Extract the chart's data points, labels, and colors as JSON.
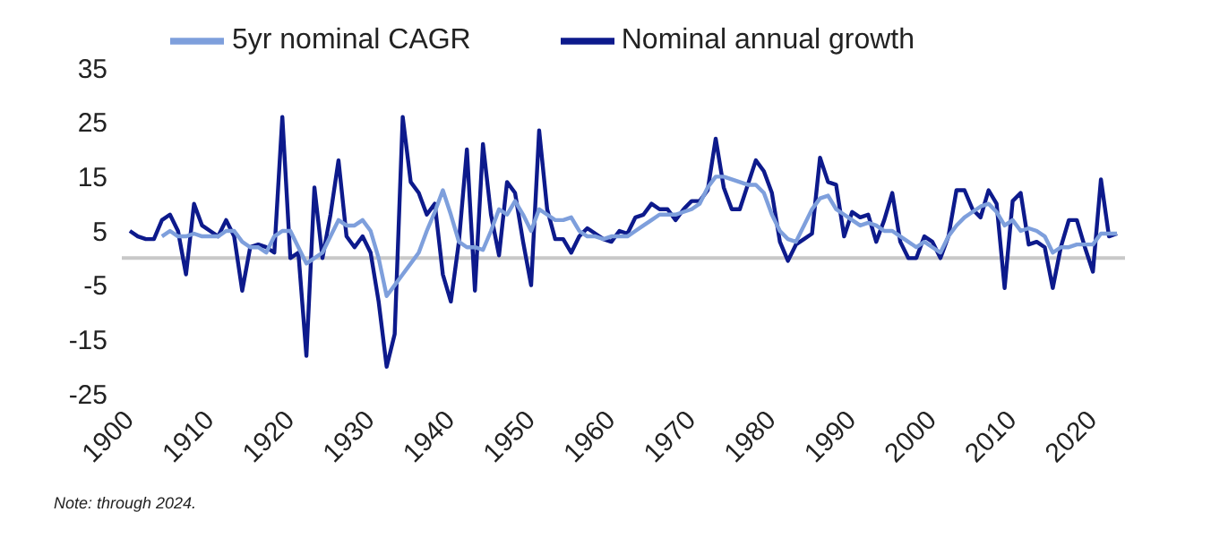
{
  "chart_data": {
    "type": "line",
    "x": [
      1901,
      1902,
      1903,
      1904,
      1905,
      1906,
      1907,
      1908,
      1909,
      1910,
      1911,
      1912,
      1913,
      1914,
      1915,
      1916,
      1917,
      1918,
      1919,
      1920,
      1921,
      1922,
      1923,
      1924,
      1925,
      1926,
      1927,
      1928,
      1929,
      1930,
      1931,
      1932,
      1933,
      1934,
      1935,
      1936,
      1937,
      1938,
      1939,
      1940,
      1941,
      1942,
      1943,
      1944,
      1945,
      1946,
      1947,
      1948,
      1949,
      1950,
      1951,
      1952,
      1953,
      1954,
      1955,
      1956,
      1957,
      1958,
      1959,
      1960,
      1961,
      1962,
      1963,
      1964,
      1965,
      1966,
      1967,
      1968,
      1969,
      1970,
      1971,
      1972,
      1973,
      1974,
      1975,
      1976,
      1977,
      1978,
      1979,
      1980,
      1981,
      1982,
      1983,
      1984,
      1985,
      1986,
      1987,
      1988,
      1989,
      1990,
      1991,
      1992,
      1993,
      1994,
      1995,
      1996,
      1997,
      1998,
      1999,
      2000,
      2001,
      2002,
      2003,
      2004,
      2005,
      2006,
      2007,
      2008,
      2009,
      2010,
      2011,
      2012,
      2013,
      2014,
      2015,
      2016,
      2017,
      2018,
      2019,
      2020,
      2021,
      2022,
      2023,
      2024
    ],
    "series": [
      {
        "name": "Nominal annual growth",
        "color": "#0d1a8c",
        "values": [
          5,
          4,
          3.5,
          3.5,
          7,
          8,
          5,
          -3,
          10,
          6,
          5,
          4,
          7,
          4,
          -6,
          2,
          2.5,
          2,
          1,
          26,
          0,
          1,
          -18,
          13,
          0,
          8,
          18,
          4,
          2,
          4,
          1,
          -8,
          -20,
          -14,
          26,
          14,
          12,
          8,
          10,
          -3,
          -8,
          3,
          20,
          -6,
          21,
          8,
          0.5,
          14,
          12,
          3,
          -5,
          23.5,
          9,
          3.5,
          3.5,
          1,
          4,
          5.5,
          4.5,
          3.5,
          3,
          5,
          4.5,
          7.5,
          8,
          10,
          9,
          9,
          7,
          9,
          10.5,
          10.5,
          12.5,
          22,
          13,
          9,
          9,
          13.5,
          18,
          16,
          12,
          3,
          -0.5,
          2.5,
          3.5,
          4.5,
          18.5,
          14,
          13.5,
          4,
          8.5,
          7.5,
          8,
          3,
          7,
          12,
          3,
          0,
          0,
          4,
          3,
          0,
          4,
          12.5,
          12.5,
          9,
          7.5,
          12.5,
          10,
          -5.5,
          10.5,
          12,
          2.5,
          3,
          2,
          -5.5,
          2,
          7,
          7,
          2,
          -2.5,
          14.5,
          4,
          4.5
        ]
      },
      {
        "name": "5yr nominal CAGR",
        "color": "#7e9fdc",
        "values": [
          null,
          null,
          null,
          null,
          4,
          5,
          4,
          4,
          4.5,
          4,
          4,
          4,
          5,
          5,
          3,
          2,
          2,
          1,
          4,
          5,
          5,
          2,
          -1,
          0,
          1,
          4,
          7,
          6,
          6,
          7,
          5,
          0,
          -7,
          -5,
          -3,
          -1,
          1,
          5,
          8.5,
          12.5,
          8,
          3,
          2,
          2,
          1.5,
          5,
          9,
          8,
          10.5,
          8,
          5,
          9,
          8,
          7,
          7,
          7.5,
          5,
          4,
          4,
          3.5,
          4,
          4,
          4,
          5,
          6,
          7,
          8,
          8,
          8,
          8.5,
          9,
          10,
          13,
          15,
          15,
          14.5,
          14,
          13.5,
          13.5,
          12,
          8,
          5,
          3.5,
          3,
          6,
          9,
          11,
          11.5,
          9,
          8,
          7,
          6,
          6.5,
          6,
          5,
          5,
          4,
          3,
          2,
          3,
          2,
          1,
          4,
          6,
          7.5,
          8.5,
          9.5,
          10,
          8.5,
          6,
          7,
          5,
          5.5,
          5,
          4,
          1,
          2,
          2,
          2.5,
          2.5,
          2.5,
          4.5,
          4.5,
          4.5
        ]
      }
    ],
    "xlim": [
      1900,
      2025
    ],
    "xticks": [
      1900,
      1910,
      1920,
      1930,
      1940,
      1950,
      1960,
      1970,
      1980,
      1990,
      2000,
      2010,
      2020
    ],
    "ylim": [
      -25,
      35
    ],
    "yticks": [
      -25,
      -15,
      -5,
      5,
      15,
      25,
      35
    ],
    "ref_lines": [
      {
        "axis": "y",
        "value": 0,
        "color": "#c8c8c8"
      }
    ],
    "grid": false,
    "legend": "top",
    "marker": "none",
    "line_style": "solid",
    "annotations": [
      "Note: through 2024."
    ]
  }
}
